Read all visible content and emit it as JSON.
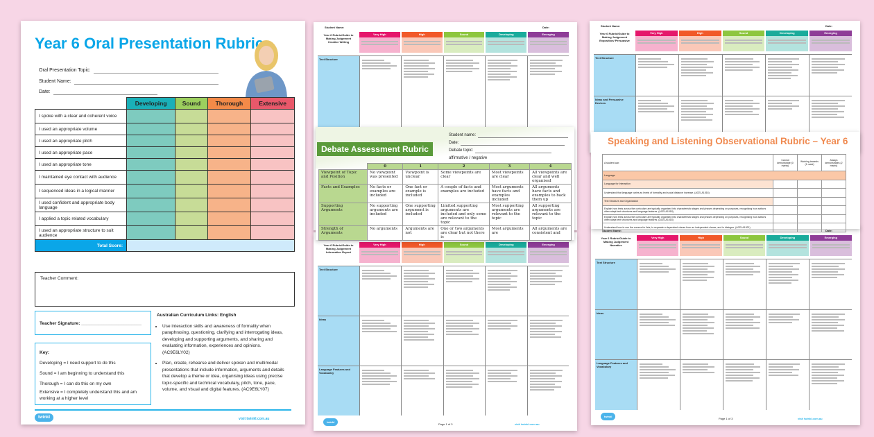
{
  "oral_rubric": {
    "title": "Year 6 Oral Presentation Rubric",
    "fields": [
      "Oral Presentation Topic:",
      "Student Name:",
      "Date:"
    ],
    "columns": [
      "Developing",
      "Sound",
      "Thorough",
      "Extensive"
    ],
    "criteria": [
      "I spoke with a clear and coherent voice",
      "I used an appropriate volume",
      "I used an appropriate pitch",
      "I used an appropriate pace",
      "I used an appropriate tone",
      "I maintained eye contact with audience",
      "I sequenced ideas in a logical manner",
      "I used confident and appropriate body language",
      "I applied a topic related vocabulary",
      "I used an appropriate structure to suit audience"
    ],
    "total_label": "Total Score:",
    "comment_label": "Teacher Comment:",
    "signature_label": "Teacher Signature:",
    "key_title": "Key:",
    "key": [
      "Developing = I need support to do this",
      "Sound = I am beginning to understand this",
      "Thorough = I can do this on my own",
      "Extensive = I completely understand this and am working at a higher level"
    ],
    "curriculum_title": "Australian Curriculum Links: English",
    "curriculum": [
      "Use interaction skills and awareness of formality when paraphrasing, questioning, clarifying and interrogating ideas, developing and supporting arguments, and sharing and evaluating information, experiences and opinions. (AC9E6LY02)",
      "Plan, create, rehearse and deliver spoken and multimodal presentations that include information, arguments and details that develop a theme or idea, organising ideas using precise topic-specific and technical vocabulary, pitch, tone, pace, volume, and visual and digital features. (AC9E6LY07)"
    ],
    "logo": "twinkl",
    "visit": "visit twinkl.com.au"
  },
  "judgement_rubrics": {
    "columns": [
      "Very High",
      "High",
      "Sound",
      "Developing",
      "Emerging"
    ],
    "colors": [
      "#e5176b",
      "#f1592a",
      "#8dc63f",
      "#1aab9b",
      "#8e3c97"
    ],
    "student_label": "Student Name:",
    "date_label": "Date:",
    "titles": [
      "Year 6 Rubric/Guide to Making Judgement Creative Writing",
      "Year 6 Rubric/Guide to Making Judgement Exposition/ Persuasive",
      "Year 6 Rubric/Guide to Making Judgement Information Report",
      "Year 6 Rubric/Guide to Making Judgement Narrative"
    ],
    "row_labels": [
      [
        "Text Structure",
        "Ideas"
      ],
      [
        "Text Structure",
        "Ideas and Persuasive Devices"
      ],
      [
        "Text Structure",
        "Ideas",
        "Language Features and Vocabulary"
      ],
      [
        "Text Structure",
        "Ideas",
        "Language Features and Vocabulary"
      ]
    ],
    "page": "Page 1 of 3"
  },
  "debate": {
    "title": "Debate Assessment Rubric",
    "fields": [
      "Student name:",
      "Date:",
      "Debate topic:"
    ],
    "stance": "affirmative / negative",
    "scores": [
      "0",
      "1",
      "2",
      "3",
      "4"
    ],
    "rows": [
      {
        "label": "Viewpoint of Topic and Position",
        "cells": [
          "No viewpoint was presented",
          "Viewpoint is unclear",
          "Some viewpoints are clear",
          "Most viewpoints are clear",
          "All viewpoints are clear and well organised"
        ]
      },
      {
        "label": "Facts and Examples",
        "cells": [
          "No facts or examples are included",
          "One fact or example is included",
          "A couple of facts and examples are included",
          "Most arguments have facts and examples included",
          "All arguments have facts and examples to back them up"
        ]
      },
      {
        "label": "Supporting Arguments",
        "cells": [
          "No supporting arguments are included",
          "One supporting argument is included",
          "Limited supporting arguments are included and only some are relevant to the topic",
          "Most supporting arguments are relevant to the topic",
          "All supporting arguments are relevant to the topic"
        ]
      },
      {
        "label": "Strength of Arguments",
        "cells": [
          "No arguments",
          "Arguments are not",
          "One or two arguments are clear but not there is",
          "Most arguments are",
          "All arguments are consistent and"
        ]
      }
    ]
  },
  "speaking": {
    "title": "Speaking and Listening Observational Rubric – Year 6",
    "header": "A student can:",
    "columns": [
      "Cannot demonstrate (0 marks)",
      "Working towards (1 mark)",
      "Always demonstrates (2 marks)"
    ],
    "rows": [
      {
        "type": "sec",
        "text": "Language"
      },
      {
        "type": "sub",
        "text": "Language for Interaction"
      },
      {
        "type": "item",
        "text": "Understand that language varies as levels of formality and social distance increase. (ACELA1516)"
      },
      {
        "type": "sub",
        "text": "Text Structure and Organisation"
      },
      {
        "type": "item",
        "text": "Explain how texts across the curriculum are typically organised into characteristic stages and phases depending on purposes, recognising how authors often adapt text structures and language features. (ACELA1518)"
      },
      {
        "type": "item",
        "text": "Explain how texts across the curriculum are typically organised into characteristic stages and phases depending on purposes, recognising how authors often adapt text structures and language features. (ACELA1518)"
      },
      {
        "type": "item",
        "text": "Understand how to use the comma for lists, to separate a dependent clause from an independent clause, and in dialogue. (ACELA1521)"
      }
    ]
  }
}
